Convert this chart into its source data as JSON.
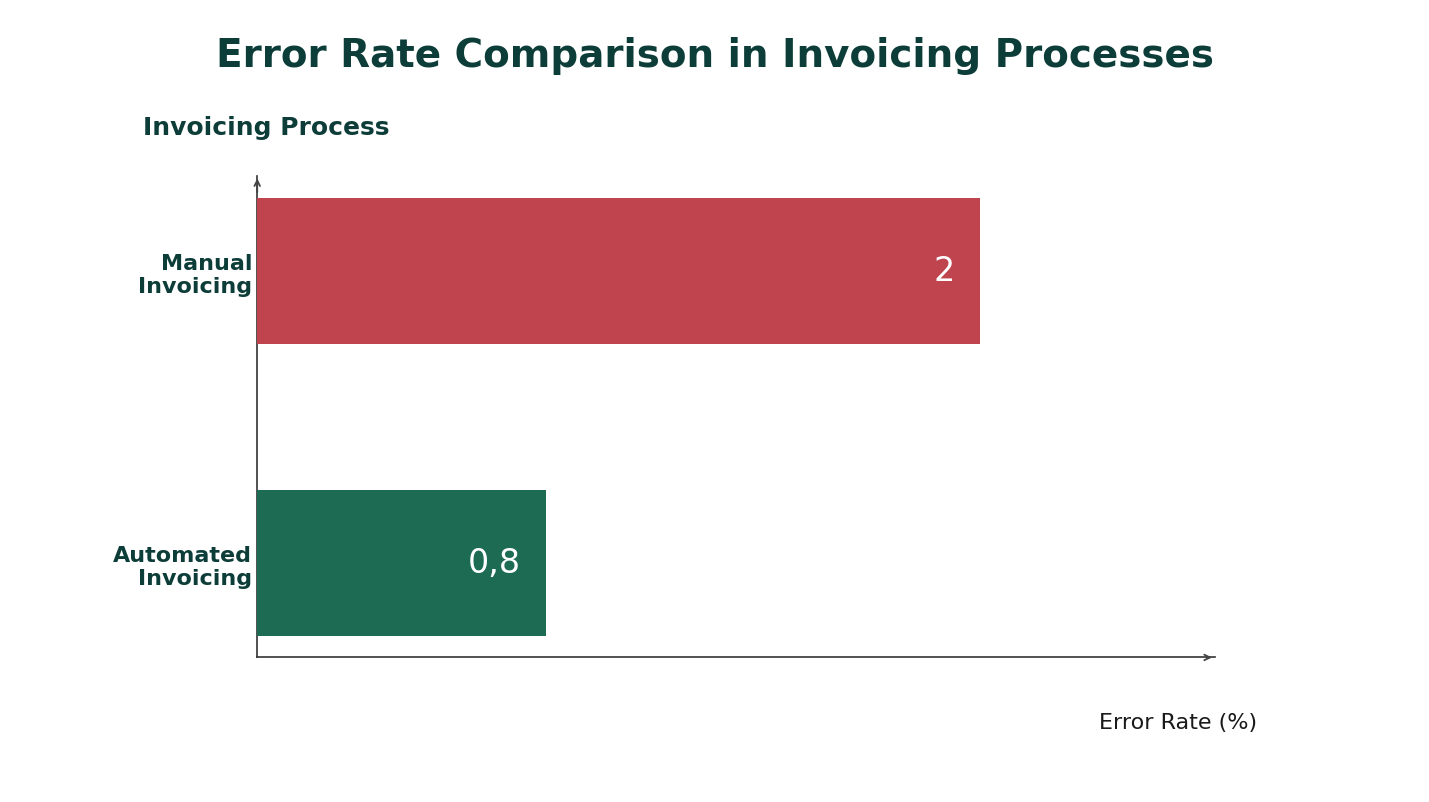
{
  "title": "Error Rate Comparison in Invoicing Processes",
  "ylabel_text": "Invoicing Process",
  "xlabel": "Error Rate (%)",
  "categories": [
    "Automated\nInvoicing",
    "Manual\nInvoicing"
  ],
  "values": [
    0.8,
    2.0
  ],
  "value_labels": [
    "0,8",
    "2"
  ],
  "bar_colors": [
    "#1d6b52",
    "#c0444e"
  ],
  "background_color": "#ffffff",
  "title_color": "#0d3d38",
  "label_color": "#1a1a1a",
  "text_color": "#ffffff",
  "title_fontsize": 28,
  "ylabel_fontsize": 18,
  "xlabel_fontsize": 16,
  "tick_fontsize": 16,
  "value_fontsize": 24,
  "xlim": [
    0,
    2.65
  ],
  "bar_height": 0.5
}
